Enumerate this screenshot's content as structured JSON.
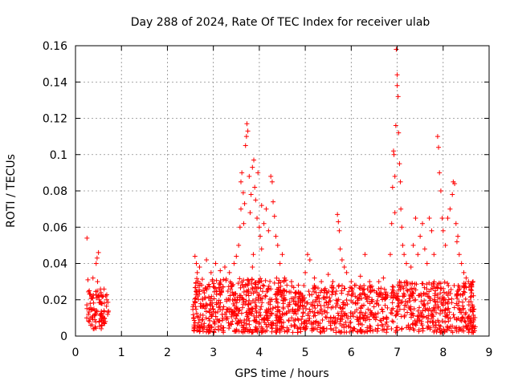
{
  "chart_data": {
    "type": "scatter",
    "title": "Day 288 of 2024, Rate Of TEC Index for receiver ulab",
    "xlabel": "GPS time / hours",
    "ylabel": "ROTI / TECUs",
    "xlim": [
      0,
      9
    ],
    "ylim": [
      0,
      0.16
    ],
    "x_ticks": [
      0,
      1,
      2,
      3,
      4,
      5,
      6,
      7,
      8,
      9
    ],
    "y_ticks": [
      0,
      0.02,
      0.04,
      0.06,
      0.08,
      0.1,
      0.12,
      0.14,
      0.16
    ],
    "x_tick_labels": [
      "0",
      "1",
      "2",
      "3",
      "4",
      "5",
      "6",
      "7",
      "8",
      "9"
    ],
    "y_tick_labels": [
      "0",
      "0.02",
      "0.04",
      "0.06",
      "0.08",
      "0.1",
      "0.12",
      "0.14",
      "0.16"
    ],
    "grid": true,
    "marker": "plus",
    "series": [
      {
        "name": "ROTI",
        "color": "#ff0000",
        "points": [
          [
            0.25,
            0.054
          ],
          [
            0.27,
            0.031
          ],
          [
            0.3,
            0.025
          ],
          [
            0.32,
            0.018
          ],
          [
            0.28,
            0.012
          ],
          [
            0.3,
            0.008
          ],
          [
            0.35,
            0.022
          ],
          [
            0.38,
            0.032
          ],
          [
            0.4,
            0.015
          ],
          [
            0.42,
            0.009
          ],
          [
            0.45,
            0.04
          ],
          [
            0.47,
            0.043
          ],
          [
            0.5,
            0.046
          ],
          [
            0.48,
            0.03
          ],
          [
            0.52,
            0.02
          ],
          [
            0.55,
            0.012
          ],
          [
            0.58,
            0.018
          ],
          [
            0.6,
            0.022
          ],
          [
            0.62,
            0.014
          ],
          [
            0.65,
            0.008
          ],
          [
            0.68,
            0.02
          ],
          [
            0.7,
            0.012
          ],
          [
            0.43,
            0.005
          ],
          [
            0.33,
            0.006
          ],
          [
            2.6,
            0.044
          ],
          [
            2.63,
            0.04
          ],
          [
            2.65,
            0.035
          ],
          [
            2.7,
            0.038
          ],
          [
            2.85,
            0.042
          ],
          [
            2.95,
            0.035
          ],
          [
            3.05,
            0.04
          ],
          [
            3.15,
            0.036
          ],
          [
            3.25,
            0.038
          ],
          [
            3.35,
            0.035
          ],
          [
            3.45,
            0.04
          ],
          [
            3.5,
            0.044
          ],
          [
            3.55,
            0.05
          ],
          [
            3.58,
            0.06
          ],
          [
            3.6,
            0.07
          ],
          [
            3.6,
            0.085
          ],
          [
            3.62,
            0.09
          ],
          [
            3.65,
            0.079
          ],
          [
            3.68,
            0.073
          ],
          [
            3.7,
            0.105
          ],
          [
            3.72,
            0.11
          ],
          [
            3.73,
            0.117
          ],
          [
            3.75,
            0.113
          ],
          [
            3.78,
            0.088
          ],
          [
            3.8,
            0.068
          ],
          [
            3.82,
            0.078
          ],
          [
            3.85,
            0.093
          ],
          [
            3.88,
            0.097
          ],
          [
            3.9,
            0.082
          ],
          [
            3.92,
            0.075
          ],
          [
            3.95,
            0.065
          ],
          [
            3.97,
            0.09
          ],
          [
            4.0,
            0.06
          ],
          [
            4.02,
            0.055
          ],
          [
            4.05,
            0.048
          ],
          [
            4.1,
            0.062
          ],
          [
            4.15,
            0.07
          ],
          [
            4.2,
            0.058
          ],
          [
            4.25,
            0.088
          ],
          [
            4.28,
            0.085
          ],
          [
            4.3,
            0.074
          ],
          [
            4.33,
            0.066
          ],
          [
            4.36,
            0.055
          ],
          [
            4.4,
            0.05
          ],
          [
            4.45,
            0.04
          ],
          [
            4.5,
            0.045
          ],
          [
            4.55,
            0.032
          ],
          [
            4.6,
            0.028
          ],
          [
            3.85,
            0.038
          ],
          [
            4.05,
            0.072
          ],
          [
            3.66,
            0.062
          ],
          [
            3.87,
            0.045
          ],
          [
            4.7,
            0.03
          ],
          [
            4.85,
            0.028
          ],
          [
            5.0,
            0.035
          ],
          [
            5.05,
            0.045
          ],
          [
            5.1,
            0.042
          ],
          [
            5.2,
            0.032
          ],
          [
            5.35,
            0.03
          ],
          [
            5.5,
            0.034
          ],
          [
            5.6,
            0.03
          ],
          [
            5.7,
            0.067
          ],
          [
            5.72,
            0.063
          ],
          [
            5.74,
            0.058
          ],
          [
            5.76,
            0.048
          ],
          [
            5.8,
            0.042
          ],
          [
            5.85,
            0.038
          ],
          [
            5.9,
            0.035
          ],
          [
            6.0,
            0.03
          ],
          [
            6.1,
            0.028
          ],
          [
            6.2,
            0.033
          ],
          [
            6.3,
            0.045
          ],
          [
            6.4,
            0.03
          ],
          [
            6.5,
            0.025
          ],
          [
            6.6,
            0.03
          ],
          [
            6.7,
            0.032
          ],
          [
            6.85,
            0.045
          ],
          [
            6.88,
            0.062
          ],
          [
            6.9,
            0.082
          ],
          [
            6.92,
            0.102
          ],
          [
            6.93,
            0.1
          ],
          [
            6.95,
            0.088
          ],
          [
            6.97,
            0.116
          ],
          [
            6.98,
            0.158
          ],
          [
            7.0,
            0.144
          ],
          [
            7.0,
            0.138
          ],
          [
            7.02,
            0.132
          ],
          [
            7.03,
            0.112
          ],
          [
            7.05,
            0.095
          ],
          [
            7.07,
            0.085
          ],
          [
            7.08,
            0.07
          ],
          [
            7.1,
            0.06
          ],
          [
            7.12,
            0.05
          ],
          [
            7.15,
            0.045
          ],
          [
            7.2,
            0.04
          ],
          [
            7.3,
            0.038
          ],
          [
            7.35,
            0.05
          ],
          [
            7.4,
            0.065
          ],
          [
            7.45,
            0.045
          ],
          [
            7.5,
            0.055
          ],
          [
            7.55,
            0.062
          ],
          [
            7.6,
            0.048
          ],
          [
            7.65,
            0.04
          ],
          [
            7.7,
            0.065
          ],
          [
            7.75,
            0.058
          ],
          [
            7.8,
            0.045
          ],
          [
            7.88,
            0.11
          ],
          [
            7.9,
            0.104
          ],
          [
            7.92,
            0.09
          ],
          [
            7.95,
            0.08
          ],
          [
            7.98,
            0.065
          ],
          [
            8.0,
            0.058
          ],
          [
            8.05,
            0.05
          ],
          [
            8.1,
            0.065
          ],
          [
            8.15,
            0.07
          ],
          [
            8.2,
            0.078
          ],
          [
            8.22,
            0.085
          ],
          [
            8.25,
            0.084
          ],
          [
            8.28,
            0.062
          ],
          [
            8.3,
            0.052
          ],
          [
            8.35,
            0.045
          ],
          [
            8.4,
            0.04
          ],
          [
            8.45,
            0.035
          ],
          [
            8.5,
            0.032
          ],
          [
            8.55,
            0.03
          ],
          [
            8.6,
            0.028
          ],
          [
            8.65,
            0.03
          ],
          [
            6.95,
            0.068
          ],
          [
            7.05,
            0.03
          ],
          [
            8.32,
            0.055
          ]
        ]
      }
    ],
    "dense_bands": [
      {
        "x_range": [
          0.24,
          0.72
        ],
        "y_range": [
          0.004,
          0.026
        ],
        "count": 80
      },
      {
        "x_range": [
          2.55,
          4.6
        ],
        "y_range": [
          0.002,
          0.032
        ],
        "count": 560
      },
      {
        "x_range": [
          4.6,
          6.8
        ],
        "y_range": [
          0.002,
          0.028
        ],
        "count": 460
      },
      {
        "x_range": [
          6.85,
          8.7
        ],
        "y_range": [
          0.002,
          0.03
        ],
        "count": 420
      }
    ]
  }
}
